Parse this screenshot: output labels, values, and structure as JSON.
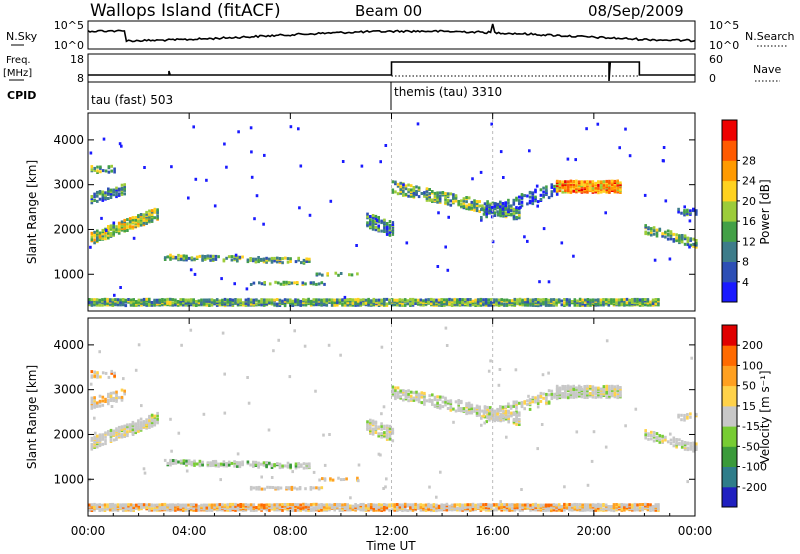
{
  "header": {
    "station": "Wallops Island (fitACF)",
    "beam": "Beam 00",
    "date": "08/Sep/2009"
  },
  "nsky_panel": {
    "label": "N.Sky",
    "left_ticks": [
      "10^5",
      "10^0"
    ],
    "right_ticks": [
      "10^5",
      "10^0"
    ],
    "right_label": "N.Search"
  },
  "freq_panel": {
    "label_top": "Freq.",
    "label_bottom": "[MHz]",
    "left_ticks": [
      "18",
      "8"
    ],
    "right_ticks": [
      "60",
      "0"
    ],
    "right_label": "Nave"
  },
  "cpid_panel": {
    "label": "CPID",
    "modes": [
      {
        "text": "tau (fast) 503",
        "start_hour": 0
      },
      {
        "text": "themis (tau) 3310",
        "start_hour": 12
      }
    ]
  },
  "x_axis": {
    "label": "Time UT",
    "ticks": [
      "00:00",
      "04:00",
      "08:00",
      "12:00",
      "16:00",
      "20:00",
      "00:00"
    ],
    "range_hours": [
      0,
      24
    ]
  },
  "chart_data": [
    {
      "type": "heatmap",
      "name": "power",
      "ylabel": "Slant Range [km]",
      "yticks": [
        1000,
        2000,
        3000,
        4000
      ],
      "ylim": [
        180,
        4600
      ],
      "xlim": [
        0,
        24
      ],
      "colorbar": {
        "label": "Power [dB]",
        "ticks": [
          "4",
          "8",
          "12",
          "16",
          "20",
          "24",
          "28"
        ],
        "colors": [
          "#1a1aff",
          "#2d4fb5",
          "#3d7c8a",
          "#43a047",
          "#9ccc3a",
          "#ffd21f",
          "#ff9a00",
          "#ff5a00",
          "#ee0000"
        ]
      }
    },
    {
      "type": "heatmap",
      "name": "velocity",
      "ylabel": "Slant Range [km]",
      "yticks": [
        1000,
        2000,
        3000,
        4000
      ],
      "ylim": [
        180,
        4600
      ],
      "xlim": [
        0,
        24
      ],
      "colorbar": {
        "label": "Velocity [m s⁻¹]",
        "ticks": [
          "200",
          "100",
          "50",
          "15",
          "-15",
          "-50",
          "-100",
          "-200"
        ],
        "colors": [
          "#2020c0",
          "#2f7d8a",
          "#3a9a3a",
          "#77cc33",
          "#c8c8c8",
          "#ffd24a",
          "#ffa020",
          "#ff6a00",
          "#e00000"
        ]
      }
    }
  ]
}
